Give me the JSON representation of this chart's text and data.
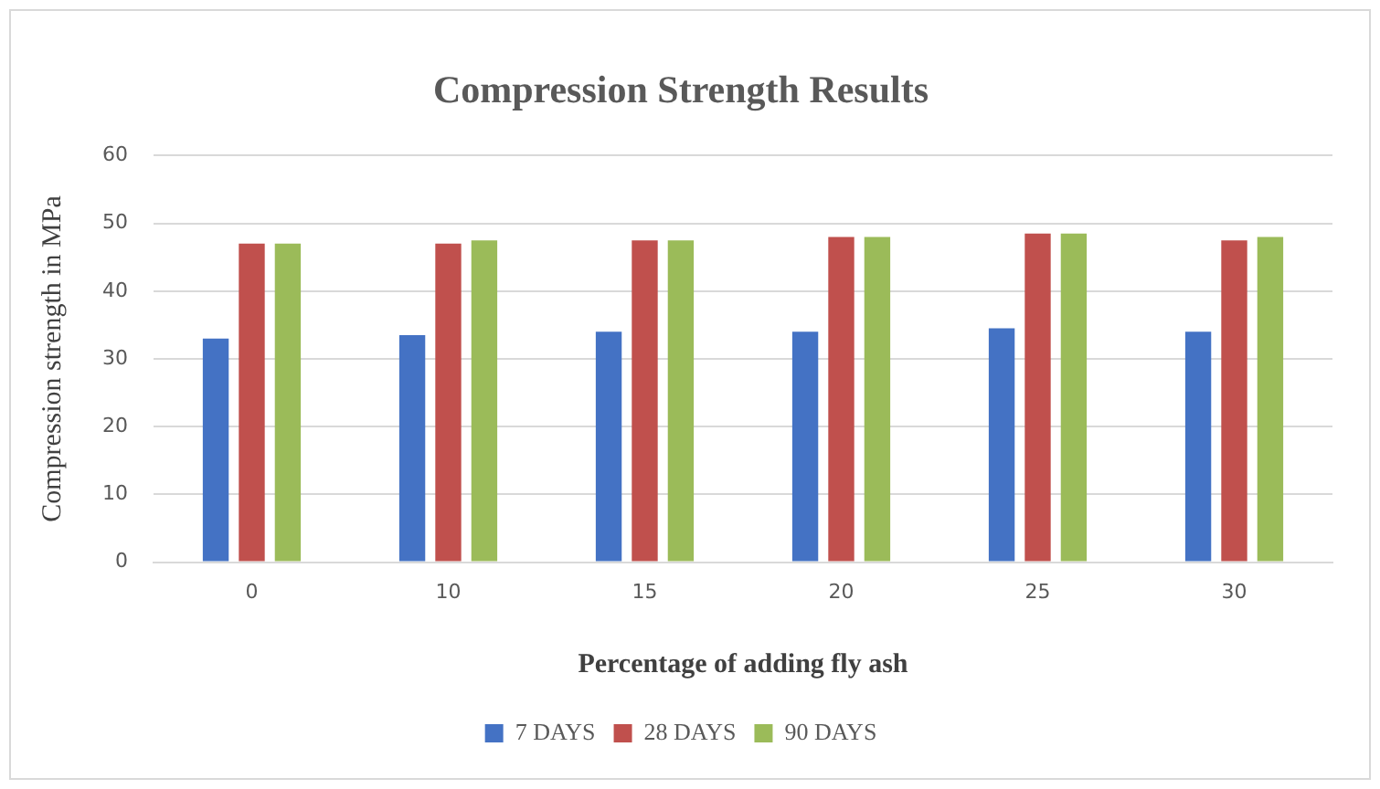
{
  "chart_data": {
    "type": "bar",
    "title": "Compression Strength Results",
    "xlabel": "Percentage of adding fly ash",
    "ylabel": "Compression strength in MPa",
    "categories": [
      "0",
      "10",
      "15",
      "20",
      "25",
      "30"
    ],
    "series": [
      {
        "name": "7 DAYS",
        "color": "#4472c4",
        "values": [
          33,
          33.5,
          34,
          34,
          34.5,
          34
        ]
      },
      {
        "name": "28 DAYS",
        "color": "#c0504d",
        "values": [
          47,
          47,
          47.5,
          48,
          48.5,
          47.5
        ]
      },
      {
        "name": "90 DAYS",
        "color": "#9bbb59",
        "values": [
          47,
          47.5,
          47.5,
          48,
          48.5,
          48
        ]
      }
    ],
    "ylim": [
      0,
      60
    ],
    "yticks": [
      0,
      10,
      20,
      30,
      40,
      50,
      60
    ],
    "grid": "y",
    "legend": "bottom"
  }
}
